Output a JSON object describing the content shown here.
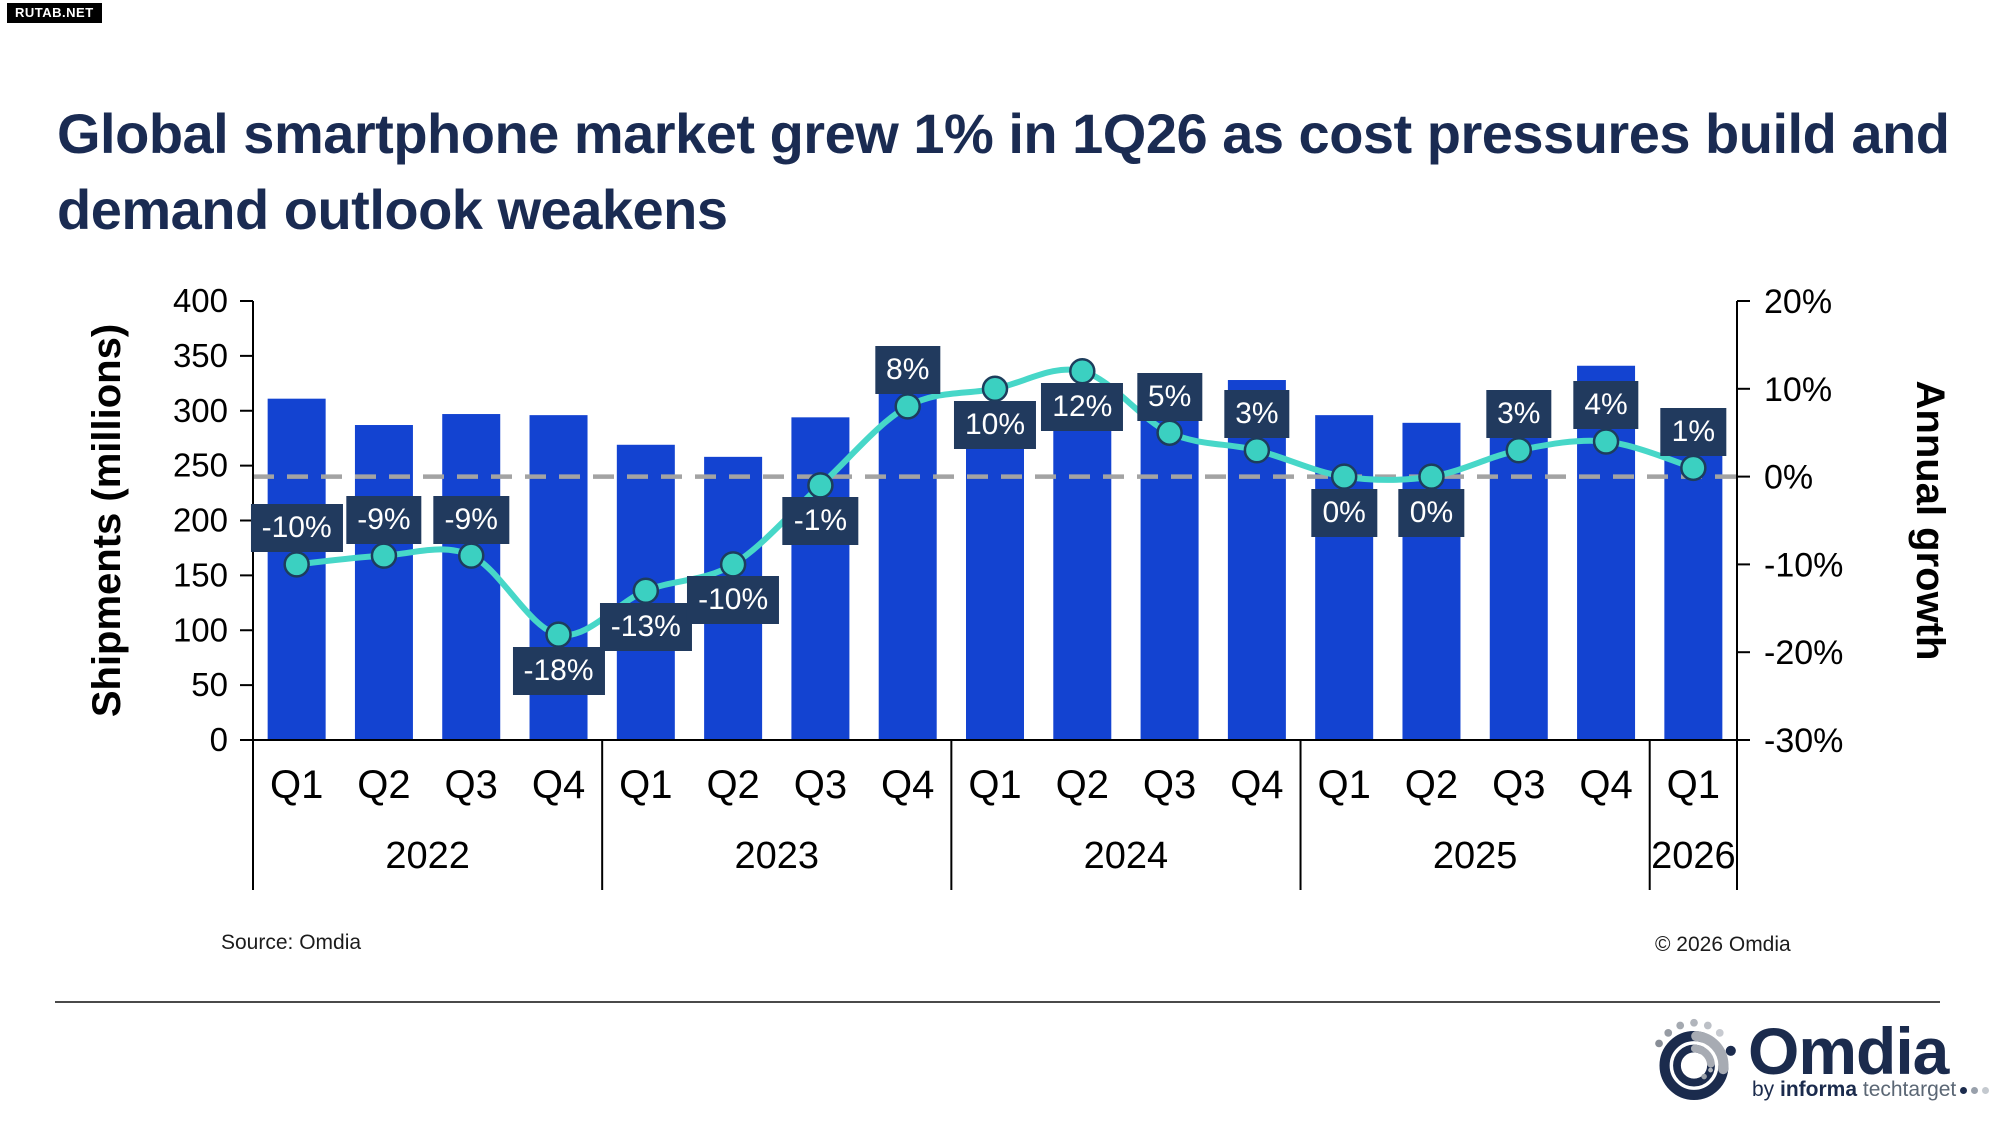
{
  "badge": {
    "text": "RUTAB.NET"
  },
  "title": {
    "line1": "Global smartphone market grew 1% in 1Q26 as cost pressures build and",
    "line2": "demand outlook weakens"
  },
  "source": {
    "text": "Source: Omdia"
  },
  "copyright": {
    "text": "© 2026 Omdia"
  },
  "logo": {
    "brand": "Omdia",
    "byline_by": "by ",
    "byline_informa": "informa",
    "byline_techtarget": " techtarget"
  },
  "colors": {
    "bar": "#1343d1",
    "line": "#47d7c8",
    "marker_fill": "#3bd0c1",
    "marker_stroke": "#1d3d5c",
    "label_bg": "#213a5e",
    "label_text": "#ffffff",
    "dashed_line": "#a3a3a3",
    "axis": "#000000",
    "title_text": "#1a2b52"
  },
  "chart_data": {
    "type": "bar+line",
    "categories": [
      "Q1",
      "Q2",
      "Q3",
      "Q4",
      "Q1",
      "Q2",
      "Q3",
      "Q4",
      "Q1",
      "Q2",
      "Q3",
      "Q4",
      "Q1",
      "Q2",
      "Q3",
      "Q4",
      "Q1"
    ],
    "year_groups": [
      {
        "label": "2022",
        "count": 4
      },
      {
        "label": "2023",
        "count": 4
      },
      {
        "label": "2024",
        "count": 4
      },
      {
        "label": "2025",
        "count": 4
      },
      {
        "label": "2026",
        "count": 1
      }
    ],
    "series": [
      {
        "name": "Shipments (millions)",
        "type": "bar",
        "values": [
          311,
          287,
          297,
          296,
          269,
          258,
          294,
          320,
          296,
          289,
          309,
          328,
          296,
          289,
          318,
          341,
          299
        ]
      },
      {
        "name": "Annual growth",
        "type": "line",
        "values": [
          -10,
          -9,
          -9,
          -18,
          -13,
          -10,
          -1,
          8,
          10,
          12,
          5,
          3,
          0,
          0,
          3,
          4,
          1
        ],
        "labels": [
          "-10%",
          "-9%",
          "-9%",
          "-18%",
          "-13%",
          "-10%",
          "-1%",
          "8%",
          "10%",
          "12%",
          "5%",
          "3%",
          "0%",
          "0%",
          "3%",
          "4%",
          "1%"
        ],
        "label_positions": [
          "above",
          "above",
          "above",
          "below",
          "below",
          "below",
          "below",
          "above",
          "below",
          "below",
          "above",
          "above",
          "below",
          "below",
          "above",
          "above",
          "above"
        ]
      }
    ],
    "axes": {
      "left": {
        "label": "Shipments (millions)",
        "min": 0,
        "max": 400,
        "step": 50,
        "suffix": ""
      },
      "right": {
        "label": "Annual growth",
        "min": -30,
        "max": 20,
        "step": 10,
        "suffix": "%"
      }
    },
    "zero_growth_reference_line": true,
    "legend": "none",
    "grid": "off"
  }
}
